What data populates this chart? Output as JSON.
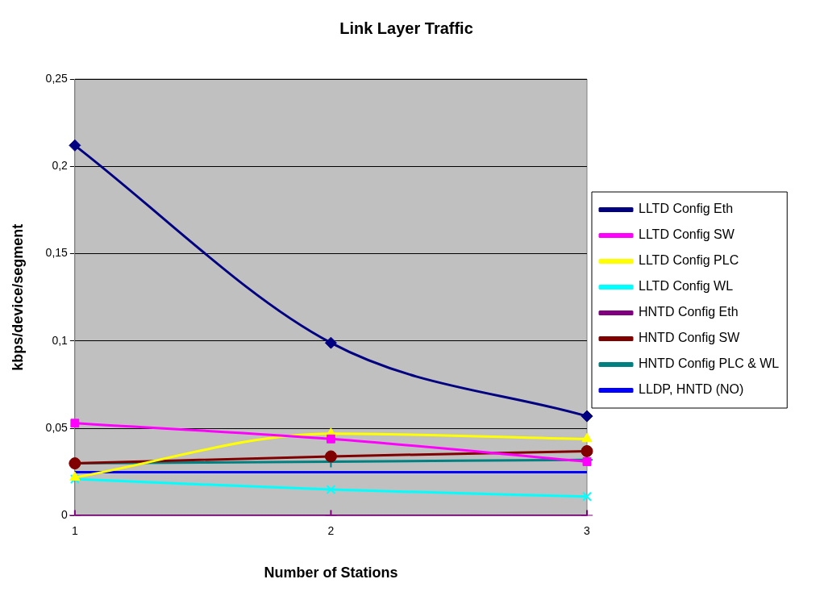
{
  "chart_data": {
    "type": "line",
    "title": "Link Layer Traffic",
    "xlabel": "Number of Stations",
    "ylabel": "kbps/device/segment",
    "categories": [
      "1",
      "2",
      "3"
    ],
    "series": [
      {
        "name": "LLTD Config Eth",
        "color": "#000080",
        "marker": "diamond",
        "values": [
          0.212,
          0.099,
          0.057
        ]
      },
      {
        "name": "LLTD Config SW",
        "color": "#ff00ff",
        "marker": "square",
        "values": [
          0.053,
          0.044,
          0.031
        ]
      },
      {
        "name": "LLTD Config PLC",
        "color": "#ffff00",
        "marker": "triangle",
        "values": [
          0.022,
          0.047,
          0.044
        ]
      },
      {
        "name": "LLTD Config WL",
        "color": "#00ffff",
        "marker": "x",
        "values": [
          0.021,
          0.015,
          0.011
        ]
      },
      {
        "name": "HNTD Config Eth",
        "color": "#800080",
        "marker": "cross",
        "values": [
          0,
          0,
          0
        ]
      },
      {
        "name": "HNTD Config SW",
        "color": "#800000",
        "marker": "circle",
        "values": [
          0.03,
          0.034,
          0.037
        ]
      },
      {
        "name": "HNTD Config PLC & WL",
        "color": "#008080",
        "marker": "cross",
        "values": [
          0.03,
          0.031,
          0.032
        ]
      },
      {
        "name": "LLDP, HNTD (NO)",
        "color": "#0000ff",
        "marker": "none",
        "values": [
          0.025,
          0.025,
          0.025
        ]
      }
    ],
    "ylim": [
      0,
      0.25
    ],
    "yticks": [
      0,
      {
        "value": 0.05,
        "label": "0,05"
      },
      {
        "value": 0.1,
        "label": "0,1"
      },
      {
        "value": 0.15,
        "label": "0,15"
      },
      {
        "value": 0.2,
        "label": "0,2"
      },
      {
        "value": 0.25,
        "label": "0,25"
      }
    ],
    "grid": "y",
    "legend": "right",
    "line_style": "solid"
  }
}
